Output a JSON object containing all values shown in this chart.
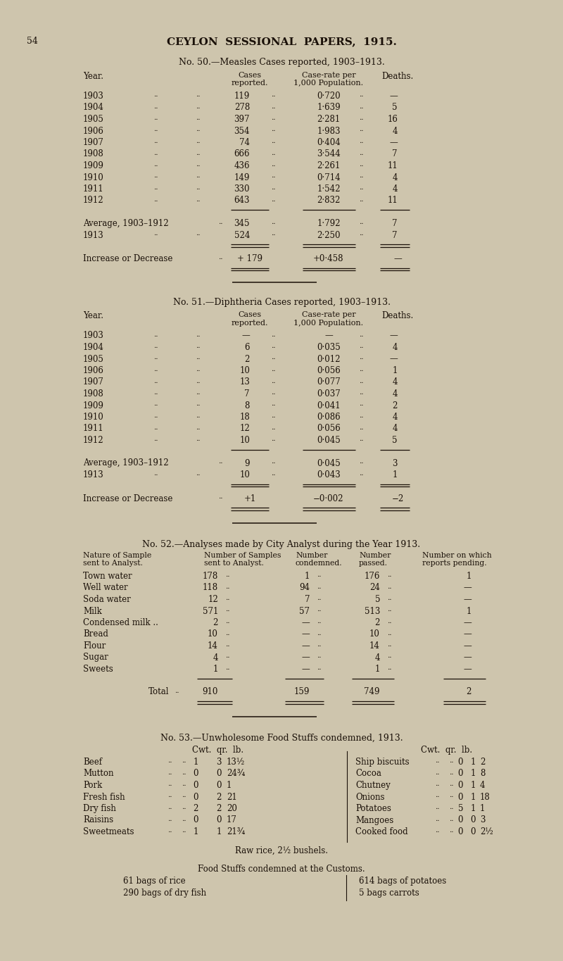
{
  "page_num": "54",
  "header": "CEYLON  SESSIONAL  PAPERS,  1915.",
  "bg_color": "#cec5ad",
  "text_color": "#1a1008",
  "table1_title": "No. 50.—Measles Cases reported, 1903–1913.",
  "table1_rows": [
    [
      "1903",
      "..",
      "..",
      "119",
      "..",
      "0·720",
      "..",
      "—"
    ],
    [
      "1904",
      "..",
      "..",
      "278",
      "..",
      "1·639",
      "..",
      "5"
    ],
    [
      "1905",
      "..",
      "..",
      "397",
      "..",
      "2·281",
      "..",
      "16"
    ],
    [
      "1906",
      "..",
      "..",
      "354",
      "..",
      "1·983",
      "..",
      "4"
    ],
    [
      "1907",
      "..",
      "..",
      "74",
      "..",
      "0·404",
      "..",
      "—"
    ],
    [
      "1908",
      "..",
      "..",
      "666",
      "..",
      "3·544",
      "..",
      "7"
    ],
    [
      "1909",
      "..",
      "..",
      "436",
      "..",
      "2·261",
      "..",
      "11"
    ],
    [
      "1910",
      "..",
      "..",
      "149",
      "..",
      "0·714",
      "..",
      "4"
    ],
    [
      "1911",
      "..",
      "..",
      "330",
      "..",
      "1·542",
      "..",
      "4"
    ],
    [
      "1912",
      "..",
      "..",
      "643",
      "..",
      "2·832",
      "..",
      "11"
    ]
  ],
  "table1_avg_row": [
    "Average, 1903–1912",
    "..",
    "345",
    "..",
    "1·792",
    "..",
    "7"
  ],
  "table1_1913_row": [
    "1913",
    "..",
    "..",
    "524",
    "..",
    "2·250",
    "..",
    "7"
  ],
  "table1_inc_row": [
    "Increase or Decrease",
    "..",
    "+ 179",
    "+0·458",
    "—"
  ],
  "table2_title": "No. 51.—Diphtheria Cases reported, 1903–1913.",
  "table2_rows": [
    [
      "1903",
      "..",
      "..",
      "—",
      "..",
      "—",
      "..",
      "—"
    ],
    [
      "1904",
      "..",
      "..",
      "6",
      "..",
      "0·035",
      "..",
      "4"
    ],
    [
      "1905",
      "..",
      "..",
      "2",
      "..",
      "0·012",
      "..",
      "—"
    ],
    [
      "1906",
      "..",
      "..",
      "10",
      "..",
      "0·056",
      "..",
      "1"
    ],
    [
      "1907",
      "..",
      "..",
      "13",
      "..",
      "0·077",
      "..",
      "4"
    ],
    [
      "1908",
      "..",
      "..",
      "7",
      "..",
      "0·037",
      "..",
      "4"
    ],
    [
      "1909",
      "..",
      "..",
      "8",
      "..",
      "0·041",
      "..",
      "2"
    ],
    [
      "1910",
      "..",
      "..",
      "18",
      "..",
      "0·086",
      "..",
      "4"
    ],
    [
      "1911",
      "..",
      "..",
      "12",
      "..",
      "0·056",
      "..",
      "4"
    ],
    [
      "1912",
      "..",
      "..",
      "10",
      "..",
      "0·045",
      "..",
      "5"
    ]
  ],
  "table2_avg_row": [
    "Average, 1903–1912",
    "..",
    "9",
    "..",
    "0·045",
    "..",
    "3"
  ],
  "table2_1913_row": [
    "1913",
    "..",
    "..",
    "10",
    "..",
    "0·043",
    "..",
    "1"
  ],
  "table2_inc_row": [
    "Increase or Decrease",
    "..",
    "+1",
    "−0·002",
    "−2"
  ],
  "table3_title": "No. 52.—Analyses made by City Analyst during the Year 1913.",
  "table3_rows": [
    [
      "Town water",
      "178",
      "1",
      "176",
      "1"
    ],
    [
      "Well water",
      "118",
      "94",
      "24",
      "—"
    ],
    [
      "Soda water",
      "12",
      "7",
      "5",
      "—"
    ],
    [
      "Milk",
      "571",
      "57",
      "513",
      "1"
    ],
    [
      "Condensed milk ..",
      "2",
      "—",
      "2",
      "—"
    ],
    [
      "Bread",
      "10",
      "—",
      "10",
      "—"
    ],
    [
      "Flour",
      "14",
      "—",
      "14",
      "—"
    ],
    [
      "Sugar",
      "4",
      "—",
      "4",
      "—"
    ],
    [
      "Sweets",
      "1",
      "—",
      "1",
      "—"
    ]
  ],
  "table3_total_row": [
    "Total",
    "910",
    "159",
    "749",
    "2"
  ],
  "table4_title": "No. 53.—Unwholesome Food Stuffs condemned, 1913.",
  "table4_left": [
    [
      "Beef",
      "1",
      "3",
      "13½"
    ],
    [
      "Mutton",
      "0",
      "0",
      "24¾"
    ],
    [
      "Pork",
      "0",
      "0",
      "1"
    ],
    [
      "Fresh fish",
      "0",
      "2",
      "21"
    ],
    [
      "Dry fish",
      "2",
      "2",
      "20"
    ],
    [
      "Raisins",
      "0",
      "0",
      "17"
    ],
    [
      "Sweetmeats",
      "1",
      "1",
      "21¾"
    ]
  ],
  "table4_right": [
    [
      "Ship biscuits",
      "0",
      "1",
      "2"
    ],
    [
      "Cocoa",
      "0",
      "1",
      "8"
    ],
    [
      "Chutney",
      "0",
      "1",
      "4"
    ],
    [
      "Onions",
      "0",
      "1",
      "18"
    ],
    [
      "Potatoes",
      "5",
      "1",
      "1"
    ],
    [
      "Mangoes",
      "0",
      "0",
      "3"
    ],
    [
      "Cooked food",
      "0",
      "0",
      "2½"
    ]
  ],
  "table4_raw_rice": "Raw rice, 2½ bushels.",
  "table4_customs_title": "Food Stuffs condemned at the Customs.",
  "table4_customs_left": [
    "61 bags of rice",
    "290 bags of dry fish"
  ],
  "table4_customs_right": [
    "614 bags of potatoes",
    "5 bags carrots"
  ]
}
